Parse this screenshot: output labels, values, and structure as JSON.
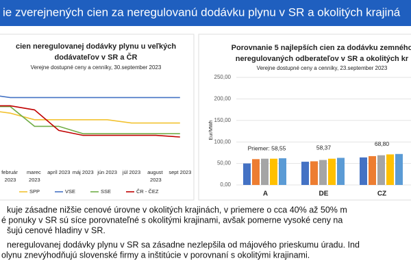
{
  "header": {
    "title": "ie zverejnených cien za neregulovanú dodávku plynu v SR a okolitých krajiná"
  },
  "chart_data": [
    {
      "type": "line",
      "title": [
        "cien neregulovanej dodávky plynu u veľkých",
        "dodávateľov v SR a ČR"
      ],
      "subtitle": "Verejne dostupné ceny a cenníky, 30.september 2023",
      "categories": [
        null,
        "február\n2023",
        "marec\n2023",
        "apríl 2023",
        "máj 2023",
        "jún 2023",
        "júl 2023",
        "august\n2023",
        "sept 2023"
      ],
      "ylim": [
        0,
        100
      ],
      "series": [
        {
          "name": "SPP",
          "color": "#f2c230",
          "values": [
            58,
            54,
            46,
            46,
            46,
            46,
            42,
            42,
            42
          ]
        },
        {
          "name": "VSE",
          "color": "#4472c4",
          "values": [
            77,
            73,
            73,
            73,
            73,
            73,
            73,
            73,
            73
          ]
        },
        {
          "name": "SSE",
          "color": "#70ad47",
          "values": [
            62,
            62,
            38,
            38,
            29,
            29,
            29,
            29,
            29
          ]
        },
        {
          "name": "ČR - ČEZ",
          "color": "#c00000",
          "values": [
            63,
            63,
            58,
            33,
            27,
            27,
            27,
            27,
            25
          ]
        }
      ]
    },
    {
      "type": "bar",
      "title": [
        "Porovnanie 5 najlepších cien za dodávku zemného",
        "neregulovaných odberateľov v SR a okolitých kr"
      ],
      "subtitle": "Verejne dostupné ceny a cenníky, 23.september 2023",
      "y_label": "Eur/MWh",
      "categories": [
        "A",
        "DE",
        "CZ"
      ],
      "ylim": [
        0,
        250
      ],
      "yticks": [
        {
          "value": 0,
          "label": "0,00"
        },
        {
          "value": 50,
          "label": "50,00"
        },
        {
          "value": 100,
          "label": "100,00"
        },
        {
          "value": 150,
          "label": "150,00"
        },
        {
          "value": 200,
          "label": "200,00"
        },
        {
          "value": 250,
          "label": "250,00"
        }
      ],
      "grid": true,
      "annotations": [
        "Priemer: 58,55",
        "58,37",
        "68,80"
      ],
      "series": [
        {
          "color": "#4472c4",
          "values": [
            50,
            54,
            64
          ]
        },
        {
          "color": "#ed7d31",
          "values": [
            60,
            55,
            67
          ]
        },
        {
          "color": "#a5a5a5",
          "values": [
            61,
            58,
            69
          ]
        },
        {
          "color": "#ffc000",
          "values": [
            61,
            61,
            71
          ]
        },
        {
          "color": "#5b9bd5",
          "values": [
            62,
            63,
            72
          ]
        }
      ]
    }
  ],
  "text_lines": [
    "kuje zásadne nižšie cenové úrovne v okolitých krajinách, v priemere o cca 40% až 50% m",
    "é ponuky v SR sú síce porovnateľné s okolitými krajinami, avšak pomerne vysoké ceny na",
    "šujú cenové hladiny v SR.",
    "neregulovanej dodávky plynu v SR sa zásadne nezlepšila od májového prieskumu úradu. Ind",
    "olynu znevýhodňujú slovenské firmy a inštitúcie v porovnaní s okolitými krajinami."
  ]
}
